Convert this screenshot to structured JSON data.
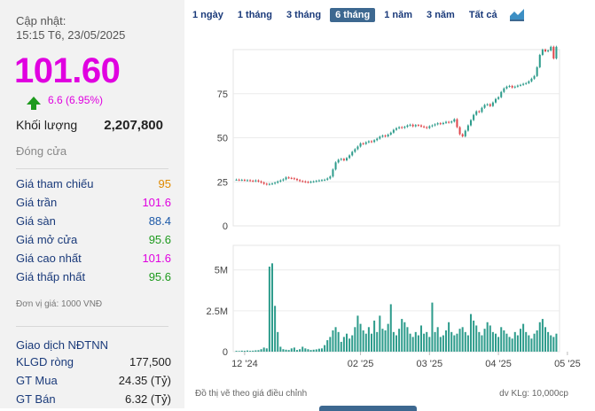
{
  "stock": {
    "update_label": "Cập nhật:",
    "update_time": "15:15 T6, 23/05/2025",
    "price": "101.60",
    "change": "6.6 (6.95%)",
    "volume_label": "Khối lượng",
    "volume_value": "2,207,800",
    "close_label": "Đóng cửa"
  },
  "prices": [
    {
      "label": "Giá tham chiếu",
      "value": "95",
      "color": "#e08a00"
    },
    {
      "label": "Giá trần",
      "value": "101.6",
      "color": "#e000e0"
    },
    {
      "label": "Giá sàn",
      "value": "88.4",
      "color": "#1e5aa8"
    },
    {
      "label": "Giá mở cửa",
      "value": "95.6",
      "color": "#1d9a1d"
    },
    {
      "label": "Giá cao nhất",
      "value": "101.6",
      "color": "#e000e0"
    },
    {
      "label": "Giá thấp nhất",
      "value": "95.6",
      "color": "#1d9a1d"
    }
  ],
  "unit_note": "Đơn vị giá: 1000 VNĐ",
  "foreign": {
    "title": "Giao dịch NĐTNN",
    "rows": [
      {
        "label": "KLGD ròng",
        "value": "177,500"
      },
      {
        "label": "GT Mua",
        "value": "24.35 (Tỷ)"
      },
      {
        "label": "GT Bán",
        "value": "6.32 (Tỷ)"
      }
    ]
  },
  "tabs": [
    "1 ngày",
    "1 tháng",
    "3 tháng",
    "6 tháng",
    "1 năm",
    "3 năm",
    "Tất cả"
  ],
  "active_tab": "6 tháng",
  "footer": {
    "left": "Đồ thị vẽ theo giá điều chỉnh",
    "right": "dv KLg: 10,000cp"
  },
  "chart_data": {
    "type": "candlestick+volume",
    "price_axis": {
      "ticks": [
        0,
        25,
        50,
        75
      ],
      "range": [
        0,
        100
      ]
    },
    "volume_axis": {
      "ticks": [
        "0",
        "2.5M",
        "5M"
      ],
      "range": [
        0,
        6500000
      ]
    },
    "x_labels": [
      "12 '24",
      "02 '25",
      "03 '25",
      "04 '25",
      "05 '25"
    ],
    "x_label_positions": [
      3,
      45,
      70,
      95,
      120
    ],
    "up_color": "#2e9c8c",
    "down_color": "#e0474c",
    "closes": [
      26.2,
      26.0,
      26.1,
      25.8,
      25.9,
      25.6,
      25.4,
      25.8,
      25.2,
      24.6,
      23.9,
      23.5,
      23.8,
      24.0,
      24.5,
      25.2,
      25.8,
      26.4,
      27.5,
      27.2,
      27.0,
      26.6,
      26.0,
      25.4,
      25.2,
      24.9,
      24.7,
      25.0,
      25.2,
      25.5,
      25.8,
      26.0,
      26.2,
      26.9,
      28.0,
      32.0,
      36.0,
      37.5,
      38.0,
      37.2,
      38.5,
      40.0,
      42.0,
      43.5,
      45.0,
      46.8,
      46.5,
      47.4,
      48.0,
      47.6,
      48.6,
      49.5,
      50.6,
      51.2,
      50.8,
      51.8,
      52.9,
      54.5,
      55.4,
      56.0,
      55.6,
      56.2,
      57.0,
      57.4,
      56.5,
      57.2,
      57.0,
      56.4,
      56.0,
      55.5,
      56.5,
      57.0,
      57.6,
      58.2,
      57.8,
      58.4,
      59.0,
      58.6,
      59.2,
      60.5,
      56.0,
      52.0,
      50.8,
      54.0,
      57.0,
      60.0,
      63.0,
      65.0,
      64.6,
      67.0,
      68.6,
      69.0,
      68.0,
      70.0,
      72.0,
      73.0,
      76.0,
      78.0,
      79.0,
      79.4,
      78.5,
      79.0,
      79.6,
      80.0,
      80.6,
      81.0,
      82.0,
      83.5,
      85.0,
      90.0,
      97.0,
      100.0,
      99.0,
      99.5,
      101.6,
      95.0,
      101.6
    ],
    "volumes": [
      50000,
      40000,
      60000,
      50000,
      70000,
      50000,
      60000,
      80000,
      90000,
      150000,
      250000,
      200000,
      5200000,
      5400000,
      2800000,
      1200000,
      300000,
      150000,
      120000,
      100000,
      200000,
      250000,
      100000,
      150000,
      300000,
      200000,
      150000,
      100000,
      120000,
      140000,
      180000,
      200000,
      400000,
      700000,
      900000,
      1300000,
      1500000,
      1200000,
      600000,
      900000,
      1100000,
      800000,
      1000000,
      1500000,
      2200000,
      1700000,
      1300000,
      1100000,
      1500000,
      1100000,
      1900000,
      1200000,
      2200000,
      1400000,
      1300000,
      1700000,
      2900000,
      1200000,
      1000000,
      1400000,
      2000000,
      1800000,
      1500000,
      1100000,
      900000,
      1200000,
      1000000,
      1600000,
      1100000,
      1200000,
      900000,
      3000000,
      1200000,
      1500000,
      900000,
      1000000,
      1300000,
      1800000,
      1200000,
      1000000,
      1100000,
      1400000,
      1500000,
      1200000,
      1000000,
      2300000,
      1900000,
      1600000,
      1200000,
      1000000,
      1400000,
      1800000,
      1600000,
      1200000,
      1100000,
      900000,
      1500000,
      1300000,
      1100000,
      900000,
      800000,
      1200000,
      1000000,
      1400000,
      1700000,
      1200000,
      1000000,
      800000,
      1100000,
      1300000,
      1800000,
      2000000,
      1500000,
      1200000,
      1000000,
      900000,
      1100000
    ]
  }
}
